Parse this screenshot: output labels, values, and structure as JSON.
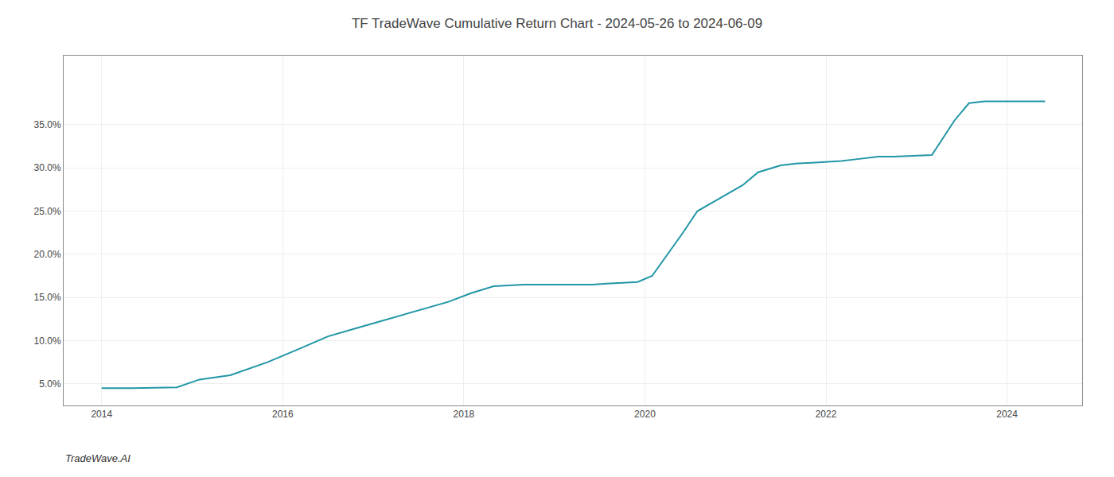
{
  "chart_data": {
    "type": "line",
    "title": "TF TradeWave Cumulative Return Chart - 2024-05-26 to 2024-06-09",
    "annotations": [
      {
        "text": "TradeWave.AI"
      }
    ],
    "x": [
      2014.0,
      2014.33,
      2014.83,
      2015.08,
      2015.42,
      2015.83,
      2016.17,
      2016.5,
      2016.83,
      2017.17,
      2017.5,
      2017.83,
      2018.08,
      2018.33,
      2018.67,
      2018.92,
      2019.08,
      2019.25,
      2019.42,
      2019.58,
      2019.75,
      2019.92,
      2020.08,
      2020.25,
      2020.42,
      2020.58,
      2020.83,
      2021.08,
      2021.25,
      2021.5,
      2021.67,
      2021.83,
      2022.0,
      2022.17,
      2022.33,
      2022.58,
      2022.75,
      2022.92,
      2023.17,
      2023.42,
      2023.58,
      2023.75,
      2023.92,
      2024.08,
      2024.42
    ],
    "values": [
      4.5,
      4.5,
      4.6,
      5.5,
      6.0,
      7.5,
      9.0,
      10.5,
      11.5,
      12.5,
      13.5,
      14.5,
      15.5,
      16.3,
      16.5,
      16.5,
      16.5,
      16.5,
      16.5,
      16.6,
      16.7,
      16.8,
      17.5,
      20.0,
      22.5,
      25.0,
      26.5,
      28.0,
      29.5,
      30.3,
      30.5,
      30.6,
      30.7,
      30.8,
      31.0,
      31.3,
      31.3,
      31.4,
      31.5,
      35.5,
      37.5,
      37.7,
      37.7,
      37.7,
      37.7
    ],
    "color": "#2196a6",
    "xlim": [
      2013.58,
      2024.83
    ],
    "ylim": [
      2.5,
      43.0
    ],
    "xticks": [
      2014,
      2016,
      2018,
      2020,
      2022,
      2024
    ],
    "yticks": [
      {
        "value": 5.0,
        "label": "5.0%"
      },
      {
        "value": 10.0,
        "label": "10.0%"
      },
      {
        "value": 15.0,
        "label": "15.0%"
      },
      {
        "value": 20.0,
        "label": "20.0%"
      },
      {
        "value": 25.0,
        "label": "25.0%"
      },
      {
        "value": 30.0,
        "label": "30.0%"
      },
      {
        "value": 35.0,
        "label": "35.0%"
      }
    ],
    "grid": true
  }
}
